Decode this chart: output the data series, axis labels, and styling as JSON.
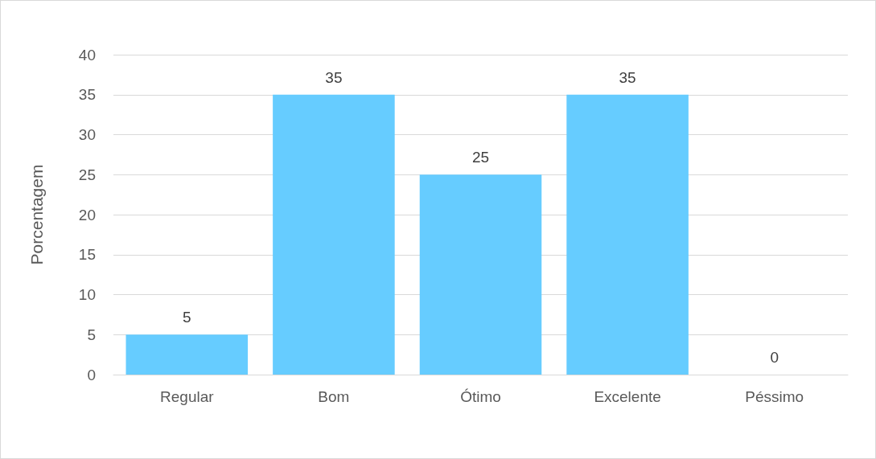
{
  "chart_data": {
    "type": "bar",
    "ylabel": "Porcentagem",
    "categories": [
      "Regular",
      "Bom",
      "Ótimo",
      "Excelente",
      "Péssimo"
    ],
    "values": [
      5,
      35,
      25,
      35,
      0
    ],
    "color": "#66ccff",
    "ylim": [
      0,
      40
    ],
    "yticks": [
      0,
      5,
      10,
      15,
      20,
      25,
      30,
      35,
      40
    ],
    "grid": "y",
    "data_labels": true
  }
}
